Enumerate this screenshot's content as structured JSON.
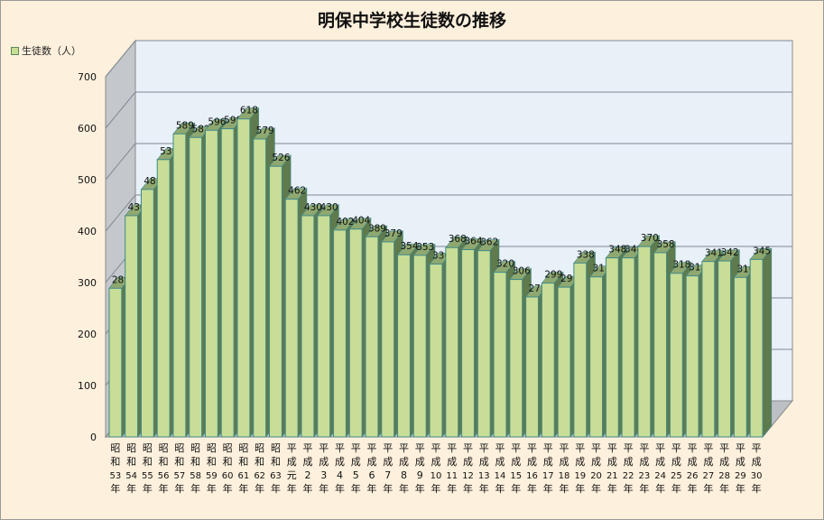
{
  "chart_data": {
    "type": "bar",
    "title": "明保中学校生徒数の推移",
    "series": [
      {
        "name": "生徒数（人）",
        "values": [
          289,
          430,
          481,
          539,
          589,
          582,
          596,
          599,
          618,
          579,
          526,
          462,
          430,
          430,
          402,
          404,
          389,
          379,
          354,
          353,
          336,
          368,
          364,
          362,
          320,
          306,
          272,
          299,
          291,
          338,
          311,
          348,
          348,
          370,
          358,
          318,
          313,
          341,
          342,
          310,
          345
        ]
      }
    ],
    "categories": [
      [
        "昭",
        "和",
        "53",
        "年"
      ],
      [
        "昭",
        "和",
        "54",
        "年"
      ],
      [
        "昭",
        "和",
        "55",
        "年"
      ],
      [
        "昭",
        "和",
        "56",
        "年"
      ],
      [
        "昭",
        "和",
        "57",
        "年"
      ],
      [
        "昭",
        "和",
        "58",
        "年"
      ],
      [
        "昭",
        "和",
        "59",
        "年"
      ],
      [
        "昭",
        "和",
        "60",
        "年"
      ],
      [
        "昭",
        "和",
        "61",
        "年"
      ],
      [
        "昭",
        "和",
        "62",
        "年"
      ],
      [
        "昭",
        "和",
        "63",
        "年"
      ],
      [
        "平",
        "成",
        "元",
        "年"
      ],
      [
        "平",
        "成",
        "2",
        "年"
      ],
      [
        "平",
        "成",
        "3",
        "年"
      ],
      [
        "平",
        "成",
        "4",
        "年"
      ],
      [
        "平",
        "成",
        "5",
        "年"
      ],
      [
        "平",
        "成",
        "6",
        "年"
      ],
      [
        "平",
        "成",
        "7",
        "年"
      ],
      [
        "平",
        "成",
        "8",
        "年"
      ],
      [
        "平",
        "成",
        "9",
        "年"
      ],
      [
        "平",
        "成",
        "10",
        "年"
      ],
      [
        "平",
        "成",
        "11",
        "年"
      ],
      [
        "平",
        "成",
        "12",
        "年"
      ],
      [
        "平",
        "成",
        "13",
        "年"
      ],
      [
        "平",
        "成",
        "14",
        "年"
      ],
      [
        "平",
        "成",
        "15",
        "年"
      ],
      [
        "平",
        "成",
        "16",
        "年"
      ],
      [
        "平",
        "成",
        "17",
        "年"
      ],
      [
        "平",
        "成",
        "18",
        "年"
      ],
      [
        "平",
        "成",
        "19",
        "年"
      ],
      [
        "平",
        "成",
        "20",
        "年"
      ],
      [
        "平",
        "成",
        "21",
        "年"
      ],
      [
        "平",
        "成",
        "22",
        "年"
      ],
      [
        "平",
        "成",
        "23",
        "年"
      ],
      [
        "平",
        "成",
        "24",
        "年"
      ],
      [
        "平",
        "成",
        "25",
        "年"
      ],
      [
        "平",
        "成",
        "26",
        "年"
      ],
      [
        "平",
        "成",
        "27",
        "年"
      ],
      [
        "平",
        "成",
        "28",
        "年"
      ],
      [
        "平",
        "成",
        "29",
        "年"
      ],
      [
        "平",
        "成",
        "30",
        "年"
      ]
    ],
    "ylim": [
      0,
      700
    ],
    "yticks": [
      "0",
      "100",
      "200",
      "300",
      "400",
      "500",
      "600",
      "700"
    ],
    "grid": true,
    "legend_position": "top-left",
    "colors": {
      "bar_front": "#c8dd96",
      "bar_top": "#8fa870",
      "bar_side": "#5f7a4c",
      "bar_edge": "#3f8a8a",
      "wall": "#e8f0f8",
      "wall_side": "#c4c8cc",
      "floor": "#bcc0c4",
      "gridline": "#7f8a94"
    }
  }
}
